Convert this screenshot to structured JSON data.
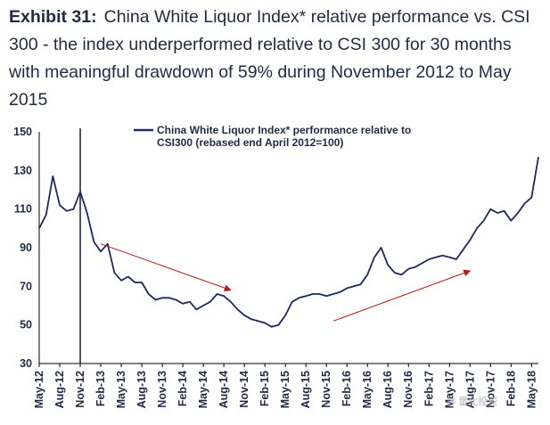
{
  "header": {
    "exhibit": "Exhibit 31:",
    "title": "China White Liquor Index* relative performance vs. CSI 300 - the index underperformed relative to CSI 300 for 30 months with meaningful drawdown of 59% during November 2012 to May 2015"
  },
  "watermark": "✉ 量化投资",
  "colors": {
    "line": "#1f2a5c",
    "arrow": "#b01c1c",
    "axis": "#000000",
    "vline": "#1f2a44"
  },
  "chart_data": {
    "type": "line",
    "legend": "China White Liquor Index* performance relative to CSI300 (rebased end April 2012=100)",
    "legend_position": "top",
    "ylim": [
      30,
      150
    ],
    "yticks": [
      30,
      50,
      70,
      90,
      110,
      130,
      150
    ],
    "xlim": [
      "2012-05",
      "2018-06"
    ],
    "xticks": [
      "May-12",
      "Aug-12",
      "Nov-12",
      "Feb-13",
      "May-13",
      "Aug-13",
      "Nov-13",
      "Feb-14",
      "May-14",
      "Aug-14",
      "Nov-14",
      "Feb-15",
      "May-15",
      "Aug-15",
      "Nov-15",
      "Feb-16",
      "May-16",
      "Aug-16",
      "Nov-16",
      "Feb-17",
      "May-17",
      "Aug-17",
      "Nov-17",
      "Feb-18",
      "May-18"
    ],
    "grid": false,
    "vertical_marker": "2012-11",
    "series": [
      {
        "name": "China White Liquor Index* performance relative to CSI300 (rebased end April 2012=100)",
        "x": [
          "2012-05",
          "2012-06",
          "2012-07",
          "2012-08",
          "2012-09",
          "2012-10",
          "2012-11",
          "2012-12",
          "2013-01",
          "2013-02",
          "2013-03",
          "2013-04",
          "2013-05",
          "2013-06",
          "2013-07",
          "2013-08",
          "2013-09",
          "2013-10",
          "2013-11",
          "2013-12",
          "2014-01",
          "2014-02",
          "2014-03",
          "2014-04",
          "2014-05",
          "2014-06",
          "2014-07",
          "2014-08",
          "2014-09",
          "2014-10",
          "2014-11",
          "2014-12",
          "2015-01",
          "2015-02",
          "2015-03",
          "2015-04",
          "2015-05",
          "2015-06",
          "2015-07",
          "2015-08",
          "2015-09",
          "2015-10",
          "2015-11",
          "2015-12",
          "2016-01",
          "2016-02",
          "2016-03",
          "2016-04",
          "2016-05",
          "2016-06",
          "2016-07",
          "2016-08",
          "2016-09",
          "2016-10",
          "2016-11",
          "2016-12",
          "2017-01",
          "2017-02",
          "2017-03",
          "2017-04",
          "2017-05",
          "2017-06",
          "2017-07",
          "2017-08",
          "2017-09",
          "2017-10",
          "2017-11",
          "2017-12",
          "2018-01",
          "2018-02",
          "2018-03",
          "2018-04",
          "2018-05",
          "2018-06"
        ],
        "y": [
          100,
          107,
          127,
          112,
          109,
          110,
          119,
          108,
          93,
          88,
          92,
          77,
          73,
          75,
          72,
          72,
          66,
          63,
          64,
          64,
          63,
          61,
          62,
          58,
          60,
          62,
          66,
          65,
          62,
          58,
          55,
          53,
          52,
          51,
          49,
          50,
          55,
          62,
          64,
          65,
          66,
          66,
          65,
          66,
          67,
          69,
          70,
          71,
          76,
          85,
          90,
          81,
          77,
          76,
          79,
          80,
          82,
          84,
          85,
          86,
          85,
          84,
          89,
          94,
          100,
          104,
          110,
          108,
          109,
          104,
          108,
          113,
          116,
          137
        ]
      }
    ],
    "annotations": [
      {
        "type": "arrow",
        "from": [
          "2013-02",
          92
        ],
        "to": [
          "2014-09",
          68
        ]
      },
      {
        "type": "arrow",
        "from": [
          "2015-12",
          52
        ],
        "to": [
          "2017-08",
          78
        ]
      }
    ]
  }
}
